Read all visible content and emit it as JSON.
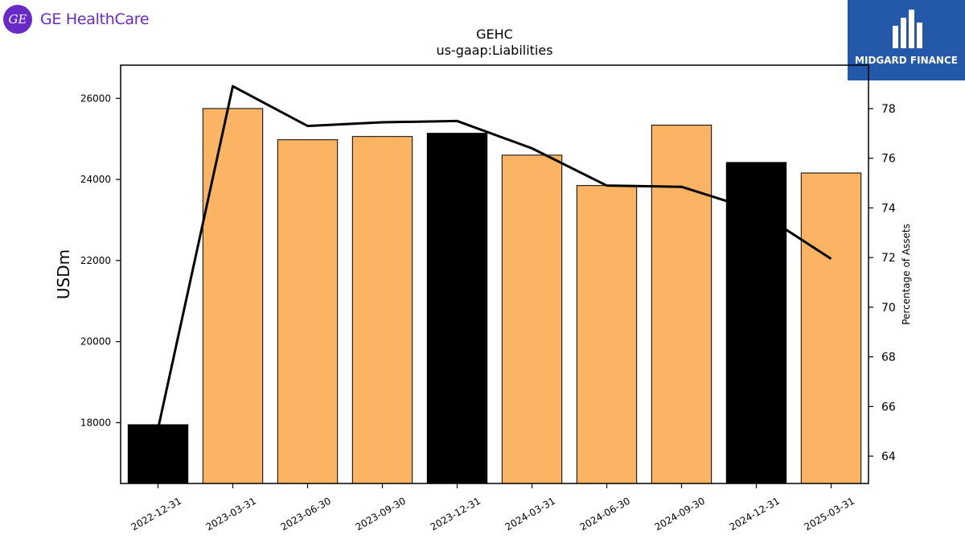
{
  "logos": {
    "left": {
      "brand": "GE HealthCare",
      "mark": "GE",
      "color": "#6a2ac7"
    },
    "right": {
      "brand": "MIDGARD FINANCE",
      "color": "#2458a8"
    }
  },
  "chart_data": {
    "type": "bar",
    "title": "GEHC",
    "subtitle": "us-gaap:Liabilities",
    "ylabel": "USDm",
    "y2label": "Percentage of Assets",
    "categories": [
      "2022-12-31",
      "2023-03-31",
      "2023-06-30",
      "2023-09-30",
      "2023-12-31",
      "2024-03-31",
      "2024-06-30",
      "2024-09-30",
      "2024-12-31",
      "2025-03-31"
    ],
    "series": [
      {
        "type": "bar",
        "axis": "left",
        "values": [
          17950,
          25750,
          24980,
          25060,
          25140,
          24600,
          23850,
          25340,
          24420,
          24160
        ]
      },
      {
        "type": "line",
        "axis": "right",
        "values": [
          65.1,
          78.9,
          77.3,
          77.45,
          77.5,
          76.4,
          74.9,
          74.85,
          73.9,
          71.95
        ]
      }
    ],
    "bar_colors": [
      "#000000",
      "#fbb463",
      "#fbb463",
      "#fbb463",
      "#000000",
      "#fbb463",
      "#fbb463",
      "#fbb463",
      "#000000",
      "#fbb463"
    ],
    "line_color": "#000000",
    "ylim": [
      16500,
      26820
    ],
    "y2lim": [
      62.9,
      79.75
    ],
    "yticks": [
      18000,
      20000,
      22000,
      24000,
      26000
    ],
    "y2ticks": [
      64,
      66,
      68,
      70,
      72,
      74,
      76,
      78
    ],
    "grid": false,
    "legend": "none"
  }
}
